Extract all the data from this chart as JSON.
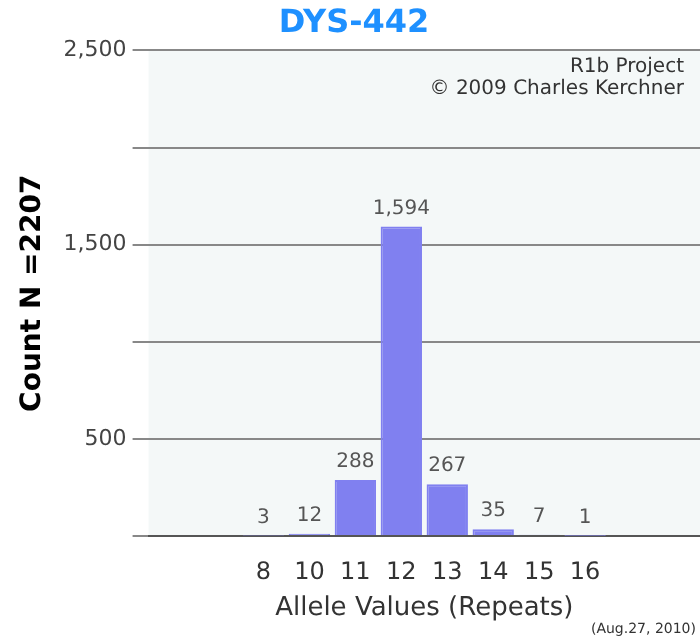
{
  "chart_data": {
    "type": "bar",
    "title": "DYS-442",
    "xlabel": "Allele Values (Repeats)",
    "ylabel": "Count N =2207",
    "categories": [
      null,
      null,
      "8",
      "10",
      "11",
      "12",
      "13",
      "14",
      "15",
      "16",
      null,
      null
    ],
    "values": [
      null,
      null,
      3,
      12,
      288,
      1594,
      267,
      35,
      7,
      1,
      null,
      null
    ],
    "value_labels": [
      null,
      null,
      "3",
      "12",
      "288",
      "1,594",
      "267",
      "35",
      "7",
      "1",
      null,
      null
    ],
    "color": "#8080f0",
    "ylim": [
      0,
      2500
    ],
    "yticks": [
      {
        "value": 0,
        "label": null
      },
      500,
      {
        "value": 1000,
        "label": null
      },
      {
        "value": 1500,
        "label": "1,500"
      },
      {
        "value": 2000,
        "label": null
      },
      {
        "value": 2500,
        "label": "2,500"
      }
    ],
    "grid": "y",
    "annotations": [
      "R1b Project",
      "© 2009 Charles Kerchner",
      "(Aug.27, 2010)"
    ]
  }
}
